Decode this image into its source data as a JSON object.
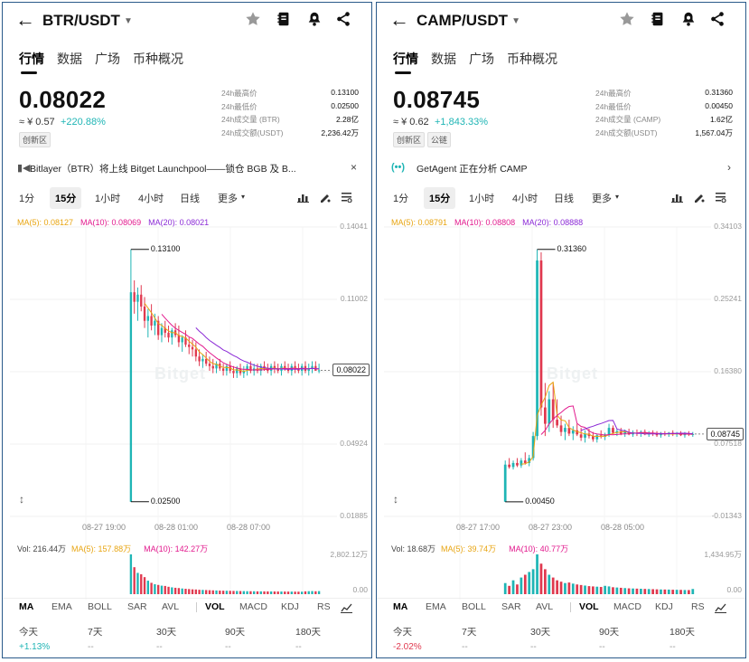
{
  "panels": [
    {
      "pair": "BTR/USDT",
      "tabs": [
        "行情",
        "数据",
        "广场",
        "币种概况"
      ],
      "last_price": "0.08022",
      "cny": "≈ ¥ 0.57",
      "change": "+220.88%",
      "badges": [
        "创新区"
      ],
      "stats": [
        {
          "label": "24h最高价",
          "value": "0.13100"
        },
        {
          "label": "24h最低价",
          "value": "0.02500"
        },
        {
          "label": "24h成交量 (BTR)",
          "value": "2.28亿"
        },
        {
          "label": "24h成交额(USDT)",
          "value": "2,236.42万"
        }
      ],
      "banner": {
        "icon": "megaphone-icon",
        "text": "Bitlayer（BTR）将上线 Bitget Launchpool——锁仓 BGB 及 B...",
        "end": "×"
      },
      "intervals": [
        "1分",
        "15分",
        "1小时",
        "4小时",
        "日线",
        "更多"
      ],
      "active_interval": "15分",
      "ma": {
        "ma5": "MA(5): 0.08127",
        "ma10": "MA(10): 0.08069",
        "ma20": "MA(20): 0.08021"
      },
      "y_ticks": [
        "0.14041",
        "0.11002",
        "0.04924",
        "0.01885"
      ],
      "current_price_box": "0.08022",
      "high_annotation": "0.13100",
      "low_annotation": "0.02500",
      "x_ticks": [
        "08-27 19:00",
        "08-28 01:00",
        "08-28 07:00"
      ],
      "watermark": "Bitget",
      "vol": {
        "vol": "Vol: 216.44万",
        "ma5": "MA(5): 157.88万",
        "ma10": "MA(10): 142.27万"
      },
      "vol_ticks": [
        "2,802.12万",
        "0.00"
      ],
      "indicators": [
        "MA",
        "EMA",
        "BOLL",
        "SAR",
        "AVL",
        "VOL",
        "MACD",
        "KDJ",
        "RS"
      ],
      "perf": [
        {
          "label": "今天",
          "value": "+1.13%",
          "dir": "up"
        },
        {
          "label": "7天",
          "value": "--",
          "dir": "none"
        },
        {
          "label": "30天",
          "value": "--",
          "dir": "none"
        },
        {
          "label": "90天",
          "value": "--",
          "dir": "none"
        },
        {
          "label": "180天",
          "value": "--",
          "dir": "none"
        }
      ],
      "chart_data": {
        "type": "candlestick",
        "ylim": [
          0.01885,
          0.14041
        ],
        "candles": [
          [
            0.025,
            0.131,
            0.025,
            0.113
          ],
          [
            0.113,
            0.118,
            0.104,
            0.109
          ],
          [
            0.109,
            0.115,
            0.101,
            0.112
          ],
          [
            0.112,
            0.116,
            0.105,
            0.107
          ],
          [
            0.107,
            0.111,
            0.098,
            0.101
          ],
          [
            0.101,
            0.106,
            0.094,
            0.103
          ],
          [
            0.103,
            0.108,
            0.097,
            0.099
          ],
          [
            0.099,
            0.104,
            0.095,
            0.101
          ],
          [
            0.101,
            0.103,
            0.093,
            0.095
          ],
          [
            0.095,
            0.1,
            0.092,
            0.098
          ],
          [
            0.098,
            0.101,
            0.094,
            0.096
          ],
          [
            0.096,
            0.099,
            0.092,
            0.094
          ],
          [
            0.094,
            0.098,
            0.091,
            0.097
          ],
          [
            0.097,
            0.1,
            0.094,
            0.095
          ],
          [
            0.095,
            0.099,
            0.09,
            0.092
          ],
          [
            0.092,
            0.095,
            0.088,
            0.094
          ],
          [
            0.094,
            0.097,
            0.09,
            0.091
          ],
          [
            0.091,
            0.094,
            0.087,
            0.09
          ],
          [
            0.09,
            0.093,
            0.086,
            0.089
          ],
          [
            0.089,
            0.092,
            0.084,
            0.086
          ],
          [
            0.086,
            0.089,
            0.082,
            0.084
          ],
          [
            0.084,
            0.087,
            0.081,
            0.085
          ],
          [
            0.085,
            0.088,
            0.082,
            0.083
          ],
          [
            0.083,
            0.086,
            0.08,
            0.082
          ],
          [
            0.082,
            0.085,
            0.079,
            0.081
          ],
          [
            0.081,
            0.084,
            0.079,
            0.083
          ],
          [
            0.083,
            0.085,
            0.08,
            0.081
          ],
          [
            0.081,
            0.083,
            0.078,
            0.08
          ],
          [
            0.08,
            0.083,
            0.078,
            0.082
          ],
          [
            0.082,
            0.084,
            0.079,
            0.08
          ],
          [
            0.08,
            0.082,
            0.077,
            0.079
          ],
          [
            0.079,
            0.082,
            0.077,
            0.081
          ],
          [
            0.081,
            0.083,
            0.078,
            0.079
          ],
          [
            0.079,
            0.082,
            0.077,
            0.08
          ],
          [
            0.08,
            0.083,
            0.078,
            0.082
          ],
          [
            0.082,
            0.084,
            0.079,
            0.08
          ],
          [
            0.08,
            0.083,
            0.078,
            0.081
          ],
          [
            0.081,
            0.083,
            0.079,
            0.08
          ],
          [
            0.08,
            0.083,
            0.078,
            0.082
          ],
          [
            0.082,
            0.084,
            0.08,
            0.081
          ],
          [
            0.081,
            0.083,
            0.079,
            0.08
          ],
          [
            0.08,
            0.083,
            0.078,
            0.082
          ],
          [
            0.082,
            0.084,
            0.079,
            0.081
          ],
          [
            0.081,
            0.083,
            0.079,
            0.08
          ],
          [
            0.08,
            0.083,
            0.078,
            0.082
          ],
          [
            0.082,
            0.084,
            0.08,
            0.081
          ],
          [
            0.081,
            0.083,
            0.079,
            0.08
          ],
          [
            0.08,
            0.083,
            0.078,
            0.082
          ],
          [
            0.082,
            0.084,
            0.079,
            0.081
          ],
          [
            0.081,
            0.083,
            0.079,
            0.08
          ],
          [
            0.08,
            0.083,
            0.078,
            0.082
          ],
          [
            0.082,
            0.084,
            0.079,
            0.08
          ],
          [
            0.08,
            0.083,
            0.078,
            0.081
          ],
          [
            0.081,
            0.084,
            0.079,
            0.082
          ],
          [
            0.082,
            0.084,
            0.08,
            0.08
          ],
          [
            0.08,
            0.083,
            0.079,
            0.08022
          ]
        ],
        "volumes": [
          2802,
          1900,
          1500,
          1400,
          1200,
          950,
          800,
          700,
          650,
          600,
          580,
          520,
          480,
          450,
          430,
          400,
          380,
          360,
          340,
          330,
          310,
          300,
          290,
          280,
          270,
          260,
          250,
          245,
          240,
          235,
          230,
          225,
          220,
          215,
          210,
          208,
          205,
          200,
          198,
          196,
          194,
          192,
          190,
          188,
          186,
          184,
          182,
          180,
          178,
          176,
          175,
          200,
          210,
          216,
          205,
          216
        ]
      }
    },
    {
      "pair": "CAMP/USDT",
      "tabs": [
        "行情",
        "数据",
        "广场",
        "币种概况"
      ],
      "last_price": "0.08745",
      "cny": "≈ ¥ 0.62",
      "change": "+1,843.33%",
      "badges": [
        "创新区",
        "公链"
      ],
      "stats": [
        {
          "label": "24h最高价",
          "value": "0.31360"
        },
        {
          "label": "24h最低价",
          "value": "0.00450"
        },
        {
          "label": "24h成交量 (CAMP)",
          "value": "1.62亿"
        },
        {
          "label": "24h成交额(USDT)",
          "value": "1,567.04万"
        }
      ],
      "banner": {
        "icon": "agent-icon",
        "text": "GetAgent 正在分析 CAMP",
        "end": "›"
      },
      "intervals": [
        "1分",
        "15分",
        "1小时",
        "4小时",
        "日线",
        "更多"
      ],
      "active_interval": "15分",
      "ma": {
        "ma5": "MA(5): 0.08791",
        "ma10": "MA(10): 0.08808",
        "ma20": "MA(20): 0.08888"
      },
      "y_ticks": [
        "0.34103",
        "0.25241",
        "0.16380",
        "0.07518",
        "-0.01343"
      ],
      "current_price_box": "0.08745",
      "high_annotation": "0.31360",
      "low_annotation": "0.00450",
      "x_ticks": [
        "08-27 17:00",
        "08-27 23:00",
        "08-28 05:00"
      ],
      "watermark": "Bitget",
      "vol": {
        "vol": "Vol: 18.68万",
        "ma5": "MA(5): 39.74万",
        "ma10": "MA(10): 40.77万"
      },
      "vol_ticks": [
        "1,434.95万",
        "0.00"
      ],
      "indicators": [
        "MA",
        "EMA",
        "BOLL",
        "SAR",
        "AVL",
        "VOL",
        "MACD",
        "KDJ",
        "RS"
      ],
      "perf": [
        {
          "label": "今天",
          "value": "-2.02%",
          "dir": "down"
        },
        {
          "label": "7天",
          "value": "--",
          "dir": "none"
        },
        {
          "label": "30天",
          "value": "--",
          "dir": "none"
        },
        {
          "label": "90天",
          "value": "--",
          "dir": "none"
        },
        {
          "label": "180天",
          "value": "--",
          "dir": "none"
        }
      ],
      "chart_data": {
        "type": "candlestick",
        "ylim": [
          -0.01343,
          0.34103
        ],
        "candles": [
          [
            0.0045,
            0.055,
            0.0045,
            0.05
          ],
          [
            0.05,
            0.058,
            0.045,
            0.047
          ],
          [
            0.047,
            0.055,
            0.044,
            0.052
          ],
          [
            0.052,
            0.058,
            0.047,
            0.049
          ],
          [
            0.049,
            0.058,
            0.046,
            0.055
          ],
          [
            0.055,
            0.065,
            0.05,
            0.052
          ],
          [
            0.052,
            0.062,
            0.048,
            0.058
          ],
          [
            0.058,
            0.09,
            0.055,
            0.085
          ],
          [
            0.085,
            0.3136,
            0.08,
            0.3
          ],
          [
            0.3,
            0.31,
            0.11,
            0.12
          ],
          [
            0.12,
            0.15,
            0.085,
            0.1
          ],
          [
            0.1,
            0.14,
            0.09,
            0.13
          ],
          [
            0.13,
            0.15,
            0.095,
            0.105
          ],
          [
            0.105,
            0.13,
            0.095,
            0.098
          ],
          [
            0.098,
            0.11,
            0.085,
            0.09
          ],
          [
            0.09,
            0.1,
            0.08,
            0.095
          ],
          [
            0.095,
            0.105,
            0.085,
            0.088
          ],
          [
            0.088,
            0.097,
            0.08,
            0.092
          ],
          [
            0.092,
            0.1,
            0.085,
            0.087
          ],
          [
            0.087,
            0.095,
            0.079,
            0.083
          ],
          [
            0.083,
            0.092,
            0.077,
            0.088
          ],
          [
            0.088,
            0.094,
            0.082,
            0.085
          ],
          [
            0.085,
            0.09,
            0.078,
            0.081
          ],
          [
            0.081,
            0.088,
            0.077,
            0.086
          ],
          [
            0.086,
            0.092,
            0.082,
            0.084
          ],
          [
            0.084,
            0.089,
            0.08,
            0.087
          ],
          [
            0.087,
            0.1,
            0.084,
            0.095
          ],
          [
            0.095,
            0.098,
            0.087,
            0.089
          ],
          [
            0.089,
            0.094,
            0.085,
            0.091
          ],
          [
            0.091,
            0.095,
            0.086,
            0.088
          ],
          [
            0.088,
            0.093,
            0.084,
            0.09
          ],
          [
            0.09,
            0.094,
            0.086,
            0.087
          ],
          [
            0.087,
            0.092,
            0.084,
            0.089
          ],
          [
            0.089,
            0.093,
            0.085,
            0.088
          ],
          [
            0.088,
            0.092,
            0.084,
            0.09
          ],
          [
            0.09,
            0.093,
            0.086,
            0.087
          ],
          [
            0.087,
            0.091,
            0.084,
            0.089
          ],
          [
            0.089,
            0.092,
            0.085,
            0.088
          ],
          [
            0.088,
            0.091,
            0.084,
            0.086
          ],
          [
            0.086,
            0.09,
            0.083,
            0.088
          ],
          [
            0.088,
            0.091,
            0.085,
            0.087
          ],
          [
            0.087,
            0.09,
            0.084,
            0.089
          ],
          [
            0.089,
            0.092,
            0.085,
            0.087
          ],
          [
            0.087,
            0.09,
            0.084,
            0.088
          ],
          [
            0.088,
            0.091,
            0.085,
            0.086
          ],
          [
            0.086,
            0.09,
            0.083,
            0.088
          ],
          [
            0.088,
            0.091,
            0.085,
            0.087
          ],
          [
            0.087,
            0.09,
            0.084,
            0.08745
          ]
        ],
        "volumes": [
          400,
          300,
          500,
          350,
          600,
          700,
          800,
          900,
          1434,
          1100,
          900,
          700,
          600,
          500,
          450,
          400,
          420,
          380,
          350,
          330,
          310,
          290,
          280,
          270,
          260,
          300,
          280,
          250,
          240,
          230,
          220,
          210,
          205,
          200,
          195,
          190,
          185,
          180,
          175,
          170,
          168,
          165,
          160,
          158,
          155,
          150,
          148,
          187
        ]
      }
    }
  ]
}
